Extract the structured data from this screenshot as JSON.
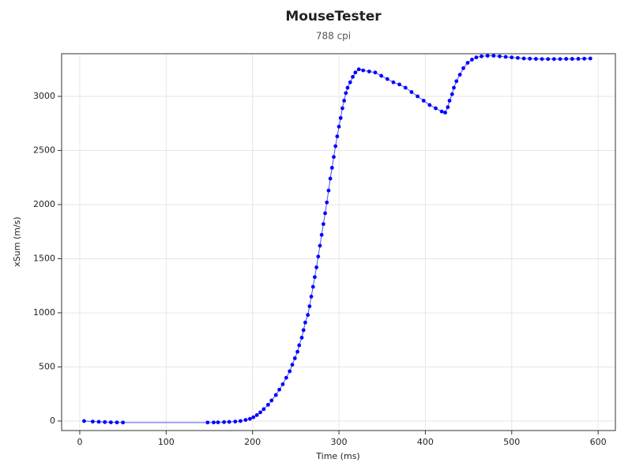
{
  "chart_data": {
    "type": "line",
    "title": "MouseTester",
    "subtitle": "788 cpi",
    "x_label": "Time (ms)",
    "y_label": "xSum (m/s)",
    "xlim": [
      -21,
      620
    ],
    "ylim": [
      -88,
      3394
    ],
    "xticks": [
      0,
      100,
      200,
      300,
      400,
      500,
      600
    ],
    "yticks": [
      0,
      500,
      1000,
      1500,
      2000,
      2500,
      3000
    ],
    "grid": true,
    "series": [
      {
        "color": "#0000ff",
        "x": [
          5,
          15,
          22,
          29,
          36,
          43,
          50,
          148,
          155,
          160,
          167,
          173,
          180,
          186,
          192,
          197,
          201,
          205,
          209,
          213,
          218,
          222,
          227,
          231,
          235,
          239,
          243,
          246,
          249,
          252,
          254,
          257,
          259,
          261,
          264,
          266,
          268,
          270,
          272,
          274,
          276,
          278,
          280,
          282,
          284,
          286,
          288,
          290,
          292,
          294,
          296,
          298,
          300,
          302,
          304,
          306,
          308,
          310,
          313,
          316,
          319,
          323,
          328,
          335,
          342,
          349,
          356,
          363,
          370,
          377,
          384,
          391,
          398,
          405,
          412,
          419,
          423,
          426,
          428,
          431,
          433,
          436,
          440,
          444,
          449,
          454,
          459,
          465,
          472,
          479,
          486,
          493,
          500,
          507,
          514,
          521,
          528,
          535,
          542,
          549,
          556,
          563,
          570,
          577,
          584,
          591
        ],
        "values": [
          0,
          -5,
          -7,
          -10,
          -12,
          -13,
          -14,
          -14,
          -13,
          -12,
          -10,
          -8,
          -5,
          0,
          10,
          20,
          35,
          55,
          80,
          110,
          150,
          190,
          240,
          290,
          340,
          400,
          460,
          520,
          580,
          640,
          700,
          770,
          840,
          910,
          980,
          1060,
          1150,
          1240,
          1330,
          1420,
          1520,
          1620,
          1720,
          1820,
          1920,
          2020,
          2130,
          2240,
          2340,
          2440,
          2540,
          2630,
          2720,
          2800,
          2890,
          2960,
          3030,
          3080,
          3130,
          3180,
          3220,
          3250,
          3240,
          3230,
          3220,
          3190,
          3160,
          3130,
          3110,
          3080,
          3040,
          3000,
          2960,
          2920,
          2890,
          2860,
          2850,
          2900,
          2960,
          3020,
          3080,
          3140,
          3200,
          3260,
          3310,
          3340,
          3360,
          3370,
          3375,
          3375,
          3370,
          3365,
          3360,
          3355,
          3350,
          3348,
          3346,
          3345,
          3345,
          3345,
          3345,
          3346,
          3346,
          3347,
          3348,
          3350
        ]
      }
    ]
  }
}
